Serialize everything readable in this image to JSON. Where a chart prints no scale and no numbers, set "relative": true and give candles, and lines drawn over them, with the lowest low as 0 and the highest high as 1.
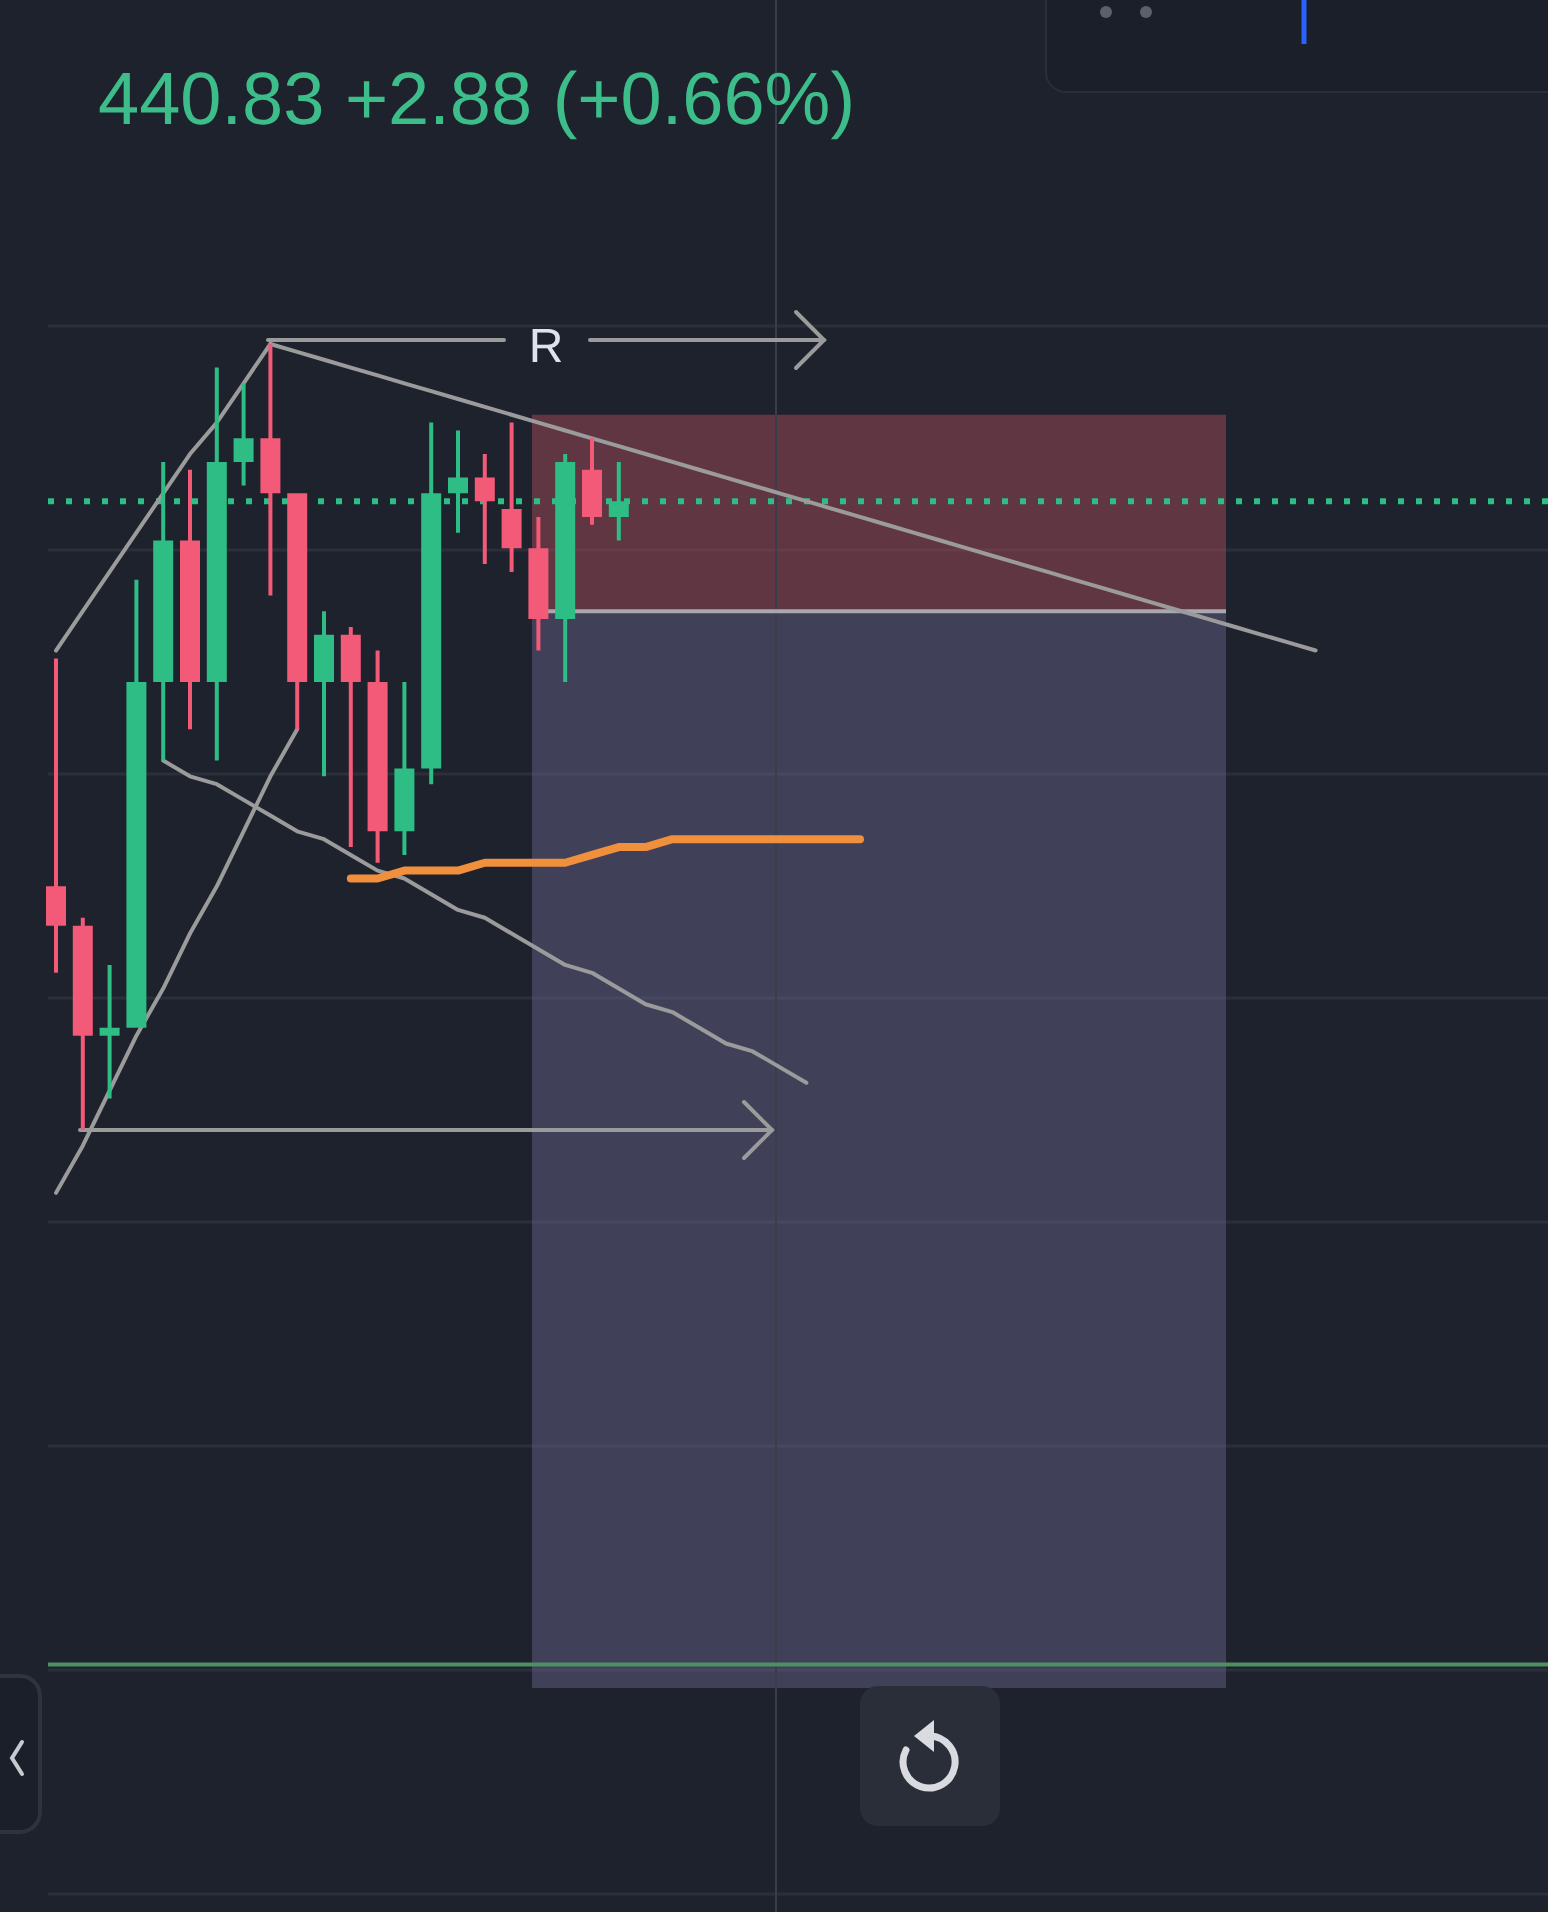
{
  "chart_data": {
    "type": "candlestick",
    "subtitle": "440.83 +2.88 (+0.66%)",
    "relative": true,
    "categories": [
      null,
      null,
      null,
      null,
      null,
      null,
      null,
      null,
      null,
      null,
      null,
      null,
      null,
      null,
      null,
      null,
      null,
      null,
      null,
      null,
      null,
      null,
      null,
      null,
      null,
      null,
      null,
      null,
      null,
      null,
      null,
      null,
      null,
      null,
      null,
      null,
      null,
      null,
      null,
      null,
      null,
      null,
      null,
      null,
      null,
      null,
      null,
      null
    ],
    "ohlc": [
      [
        0.31,
        0.6,
        0.2,
        0.26
      ],
      [
        0.26,
        0.27,
        0,
        0.12
      ],
      [
        0.12,
        0.21,
        0.04,
        0.13
      ],
      [
        0.13,
        0.7,
        0.13,
        0.57
      ],
      [
        0.57,
        0.85,
        0.47,
        0.75
      ],
      [
        0.75,
        0.84,
        0.51,
        0.57
      ],
      [
        0.57,
        0.97,
        0.47,
        0.85
      ],
      [
        0.85,
        0.95,
        0.82,
        0.88
      ],
      [
        0.88,
        1,
        0.68,
        0.81
      ],
      [
        0.81,
        0.81,
        0.51,
        0.57
      ],
      [
        0.57,
        0.66,
        0.45,
        0.63
      ],
      [
        0.63,
        0.64,
        0.36,
        0.57
      ],
      [
        0.57,
        0.61,
        0.34,
        0.38
      ],
      [
        0.38,
        0.57,
        0.35,
        0.46
      ],
      [
        0.46,
        0.9,
        0.44,
        0.81
      ],
      [
        0.81,
        0.89,
        0.76,
        0.83
      ],
      [
        0.83,
        0.86,
        0.72,
        0.8
      ],
      [
        0.79,
        0.9,
        0.71,
        0.74
      ],
      [
        0.74,
        0.78,
        0.61,
        0.65
      ],
      [
        0.65,
        0.86,
        0.57,
        0.85
      ],
      [
        0.84,
        0.88,
        0.77,
        0.78
      ],
      [
        0.78,
        0.85,
        0.75,
        0.8
      ],
      null,
      null,
      null,
      null,
      null,
      null,
      null,
      null,
      null,
      null,
      null,
      null,
      null,
      null,
      null,
      null,
      null,
      null,
      null,
      null,
      null,
      null,
      null,
      null,
      null,
      null
    ],
    "colors": [
      "#f25a78",
      "#f25a78",
      "#2ebd85",
      "#2ebd85",
      "#2ebd85",
      "#f25a78",
      "#2ebd85",
      "#2ebd85",
      "#f25a78",
      "#f25a78",
      "#2ebd85",
      "#f25a78",
      "#f25a78",
      "#2ebd85",
      "#2ebd85",
      "#2ebd85",
      "#f25a78",
      "#f25a78",
      "#f25a78",
      "#2ebd85",
      "#f25a78",
      "#2ebd85",
      null,
      null,
      null,
      null,
      null,
      null,
      null,
      null,
      null,
      null,
      null,
      null,
      null,
      null,
      null,
      null,
      null,
      null,
      null,
      null,
      null,
      null,
      null,
      null,
      null,
      null
    ],
    "series": [
      {
        "type": "line",
        "color": "#9b9b9b",
        "values": [
          0.61,
          0.66,
          0.71,
          0.76,
          0.81,
          0.86,
          0.9,
          0.95,
          1.0,
          null,
          null,
          null,
          null,
          null,
          null,
          null,
          null,
          null,
          null,
          null,
          null,
          null,
          null,
          null,
          null,
          null,
          null,
          null,
          null,
          null,
          null,
          null,
          null,
          null,
          null,
          null,
          null,
          null,
          null,
          null,
          null,
          null,
          null,
          null,
          null,
          null,
          null,
          null
        ]
      },
      {
        "type": "line",
        "color": "#9b9b9b",
        "values": [
          null,
          null,
          null,
          null,
          null,
          null,
          null,
          null,
          1.0,
          0.99,
          0.98,
          0.97,
          0.96,
          0.95,
          0.94,
          0.93,
          0.92,
          0.91,
          0.9,
          0.89,
          0.88,
          0.87,
          0.86,
          0.85,
          0.84,
          0.83,
          0.82,
          0.81,
          0.8,
          0.79,
          0.78,
          0.77,
          0.76,
          0.75,
          0.74,
          0.73,
          0.72,
          0.71,
          0.7,
          0.69,
          0.68,
          0.67,
          0.66,
          0.65,
          0.64,
          0.63,
          0.62,
          0.61
        ]
      },
      {
        "type": "line",
        "color": "#9b9b9b",
        "values": [
          -0.08,
          -0.02,
          0.05,
          0.12,
          0.18,
          0.25,
          0.31,
          0.38,
          0.45,
          0.51,
          null,
          null,
          null,
          null,
          null,
          null,
          null,
          null,
          null,
          null,
          null,
          null,
          null,
          null,
          null,
          null,
          null,
          null,
          null,
          null,
          null,
          null,
          null,
          null,
          null,
          null,
          null,
          null,
          null,
          null,
          null,
          null,
          null,
          null,
          null,
          null,
          null,
          null
        ]
      },
      {
        "type": "line",
        "color": "#9b9b9b",
        "values": [
          null,
          null,
          null,
          null,
          0.47,
          0.45,
          0.44,
          0.42,
          0.4,
          0.38,
          0.37,
          0.35,
          0.33,
          0.32,
          0.3,
          0.28,
          0.27,
          0.25,
          0.23,
          0.21,
          0.2,
          0.18,
          0.16,
          0.15,
          0.13,
          0.11,
          0.1,
          0.08,
          0.06,
          null,
          null,
          null,
          null,
          null,
          null,
          null,
          null,
          null,
          null,
          null,
          null,
          null,
          null,
          null,
          null,
          null,
          null,
          null
        ]
      },
      {
        "type": "line",
        "color": "#f0903c",
        "values": [
          null,
          null,
          null,
          null,
          null,
          null,
          null,
          null,
          null,
          null,
          null,
          0.32,
          0.32,
          0.33,
          0.33,
          0.33,
          0.34,
          0.34,
          0.34,
          0.34,
          0.35,
          0.36,
          0.36,
          0.37,
          0.37,
          0.37,
          0.37,
          0.37,
          0.37,
          0.37,
          0.37,
          null,
          null,
          null,
          null,
          null,
          null,
          null,
          null,
          null,
          null,
          null,
          null,
          null,
          null,
          null,
          null,
          null
        ]
      }
    ],
    "bands": [
      {
        "axis": "y",
        "from": 0.66,
        "to": 0.91,
        "color": "#b0505e"
      },
      {
        "axis": "y",
        "from": -0.71,
        "to": 0.66,
        "color": "#6a6590"
      }
    ],
    "ref_lines": [
      {
        "axis": "y",
        "value": 0.8,
        "color": "#2ebd85",
        "line_style": "dotted"
      },
      {
        "axis": "y",
        "value": -0.68,
        "color": "#4e8f63",
        "line_style": "solid"
      },
      {
        "axis": "y",
        "value": 0.66,
        "color": "#a8a8b0",
        "line_style": "solid"
      }
    ],
    "annotations": [
      "R"
    ],
    "grid": true
  }
}
